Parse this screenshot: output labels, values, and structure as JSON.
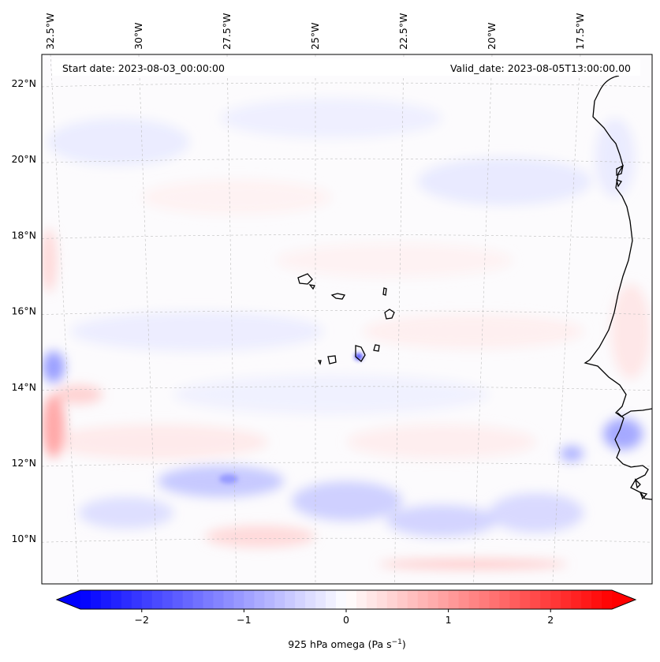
{
  "map": {
    "start_date_label": "Start date: 2023-08-03_00:00:00",
    "valid_date_label": "Valid_date: 2023-08-05T13:00:00.00",
    "longitude_labels": [
      "32.5°W",
      "30°W",
      "27.5°W",
      "25°W",
      "22.5°W",
      "20°W",
      "17.5°W"
    ],
    "latitude_labels": [
      "22°N",
      "20°N",
      "18°N",
      "16°N",
      "14°N",
      "12°N",
      "10°N"
    ],
    "lat_values": [
      22,
      20,
      18,
      16,
      14,
      12,
      10
    ],
    "lon_values": [
      -32.5,
      -30,
      -27.5,
      -25,
      -22.5,
      -20,
      -17.5
    ],
    "field_description": "925 hPa omega"
  },
  "colorbar": {
    "label": "925 hPa omega (Pa s",
    "label_exponent": "−1",
    "label_close": ")",
    "tick_labels": [
      "−2",
      "−1",
      "0",
      "1",
      "2"
    ],
    "tick_values": [
      -2,
      -1,
      0,
      1,
      2
    ],
    "range": [
      -2.6,
      2.6
    ],
    "colormap": "bwr",
    "color_low": "#0000ff",
    "color_mid": "#ffffff",
    "color_high": "#ff0000"
  }
}
